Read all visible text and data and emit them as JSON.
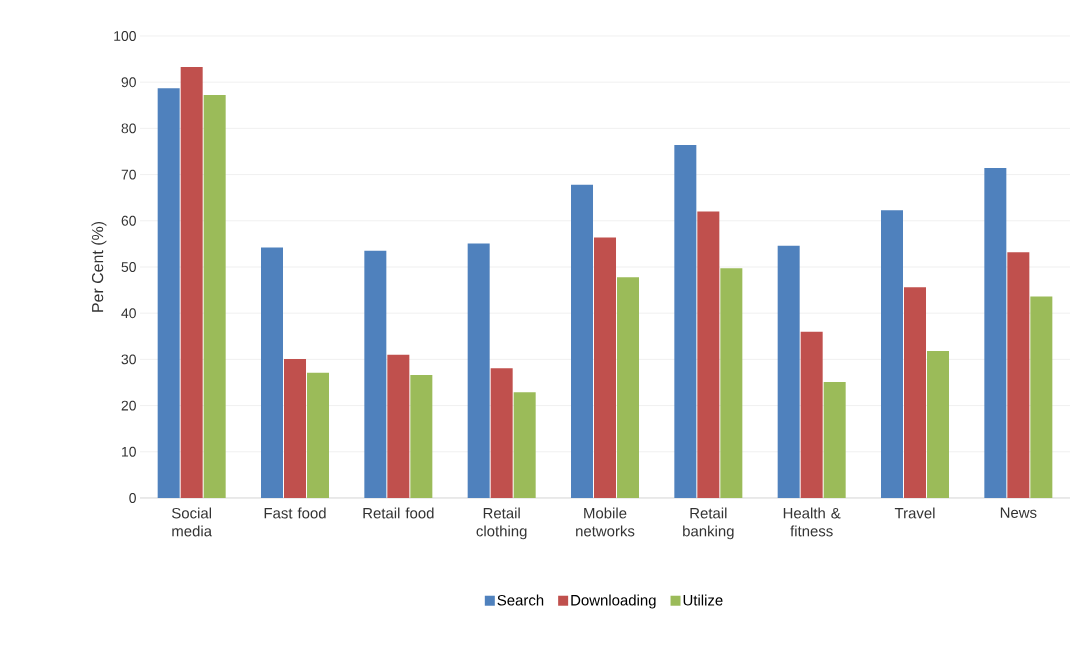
{
  "chart_data": {
    "type": "bar",
    "ylabel": "Per Cent (%)",
    "categories": [
      "Social media",
      "Fast food",
      "Retail food",
      "Retail clothing",
      "Mobile networks",
      "Retail banking",
      "Health & fitness",
      "Travel",
      "News"
    ],
    "series": [
      {
        "name": "Search",
        "color": "#4f81bd",
        "values": [
          88.7,
          54.2,
          53.5,
          55.1,
          67.8,
          76.4,
          54.6,
          62.3,
          71.4
        ]
      },
      {
        "name": "Downloading",
        "color": "#c0504d",
        "values": [
          93.3,
          30.1,
          31.0,
          28.1,
          56.4,
          62.0,
          36.0,
          45.6,
          53.2
        ]
      },
      {
        "name": "Utilize",
        "color": "#9bbb59",
        "values": [
          87.2,
          27.1,
          26.6,
          22.9,
          47.8,
          49.7,
          25.1,
          31.8,
          43.6
        ]
      }
    ],
    "ylim": [
      0,
      100
    ],
    "yticks": [
      0,
      10,
      20,
      30,
      40,
      50,
      60,
      70,
      80,
      90,
      100
    ],
    "grid": "y",
    "legend": "bottom"
  }
}
